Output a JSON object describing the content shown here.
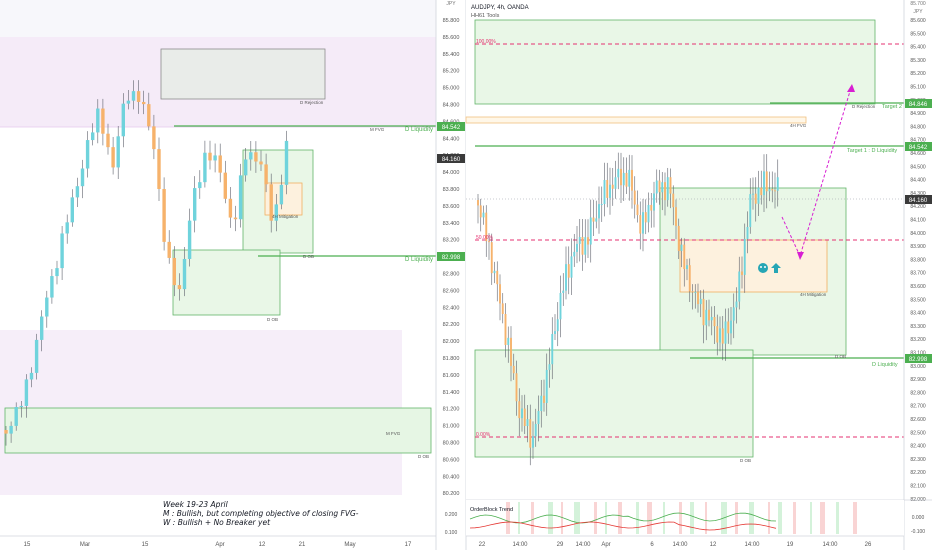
{
  "colors": {
    "bull": "#6fd3dc",
    "bear": "#f6b26b",
    "level": "#4caf50",
    "fvg_fill": "#e9f7e7",
    "fvg_stroke": "#62b56a",
    "pink_zone": "#f6eef9",
    "target_line": "#e53170",
    "projection": "#d81fd2",
    "price_badge": "#4caf50",
    "last_price_badge": "#3a3a3a"
  },
  "left_panel": {
    "x_ticks": [
      "15",
      "Mar",
      "15",
      "Apr",
      "12",
      "21",
      "May",
      "17"
    ],
    "labels": {
      "d_rejection": "D Rejection",
      "m_fvg_top": "M FVG",
      "d_liquidity_top": "D Liquidity",
      "mitigation": "4H Mitigation",
      "d_ob_a": "D OB",
      "d_liquidity_mid": "D Liquidity",
      "d_ob_b": "D OB",
      "m_fvg_bottom": "M FVG",
      "d_ob_c": "D OB"
    },
    "annotation": {
      "line1": "Week 19-23 April",
      "line2": "M : Bullish, but completing objective of closing FVG-",
      "line3": "W : Bullish + No Breaker yet"
    }
  },
  "right_panel": {
    "header": {
      "symbol": "AUDJPY, 4h, OANDA",
      "tools": "HH61 Tools"
    },
    "currency_label": "JPY",
    "x_ticks": [
      "22",
      "14:00",
      "29",
      "14:00",
      "Apr",
      "6",
      "14:00",
      "12",
      "14:00",
      "19",
      "14:00",
      "26"
    ],
    "left_axis": [
      "85.800",
      "85.600",
      "85.400",
      "85.200",
      "85.000",
      "84.800",
      "84.600",
      "84.400",
      "84.200",
      "84.000",
      "83.800",
      "83.600",
      "83.400",
      "83.200",
      "83.000",
      "82.800",
      "82.600",
      "82.400",
      "82.200",
      "82.000",
      "81.800",
      "81.600",
      "81.400",
      "81.200",
      "81.000",
      "80.800",
      "80.600",
      "80.400",
      "80.200"
    ],
    "right_axis": [
      "85.600",
      "85.500",
      "85.400",
      "85.300",
      "85.200",
      "85.100",
      "85.000",
      "84.900",
      "84.800",
      "84.700",
      "84.600",
      "84.500",
      "84.400",
      "84.300",
      "84.200",
      "84.100",
      "84.000",
      "83.900",
      "83.800",
      "83.700",
      "83.600",
      "83.500",
      "83.400",
      "83.300",
      "83.200",
      "83.100",
      "83.000",
      "82.900",
      "82.800",
      "82.700",
      "82.600",
      "82.500",
      "82.400",
      "82.300",
      "82.200",
      "82.100",
      "82.000"
    ],
    "right_axis_top": "85.700",
    "fib": {
      "f100": "100.00%",
      "f50": "50.00%",
      "f0": "0.00%"
    },
    "labels": {
      "target_2": "Target 2",
      "d_rejection": "D Rejection",
      "h4_fvg": "4H FVG",
      "target_1": "Target 1 : D Liquidity",
      "mitigation": "4H Mitigation",
      "d_ob_a": "D OB",
      "d_liquidity": "D Liquidity",
      "d_ob_b": "D OB"
    },
    "badges": {
      "target_2_price": "84.846",
      "target_1_price": "84.542",
      "last_price": "84.160",
      "d_liquidity_price": "82.998"
    },
    "left_badges": {
      "m_fvg_price": "84.542",
      "last_price": "84.160",
      "d_liquidity_price": "82.998"
    }
  },
  "indicator": {
    "title": "OrderBlock Trend",
    "left_ticks": [
      "0.200",
      "0.100"
    ],
    "right_ticks": [
      "0.000",
      "-0.100"
    ]
  },
  "chart_data": [
    {
      "type": "line",
      "title": "",
      "xlabel": "",
      "ylabel": "",
      "series": [
        {
          "values": [
            81.0,
            81.8,
            82.8,
            83.9,
            84.3,
            83.2,
            84.6,
            84.2,
            85.0,
            84.0,
            83.2,
            82.7,
            83.6,
            84.0,
            83.4,
            84.1
          ]
        }
      ],
      "levels": {
        "d_liquidity_top": 84.542,
        "d_liquidity_mid": 82.998
      }
    },
    {
      "type": "line",
      "title": "",
      "xlabel": "",
      "ylabel": "",
      "series": [
        {
          "values": [
            83.8,
            82.8,
            81.2,
            80.7,
            81.8,
            82.8,
            83.4,
            83.3,
            84.0,
            84.2,
            83.7,
            84.0,
            83.6,
            83.2,
            82.9,
            83.4,
            84.0,
            84.16
          ]
        }
      ],
      "levels": {
        "target_2": 84.846,
        "target_1": 84.542,
        "d_liquidity": 82.998
      },
      "fib_levels": {
        "100%": 85.55,
        "50%": 83.2,
        "0%": 80.85
      }
    }
  ]
}
